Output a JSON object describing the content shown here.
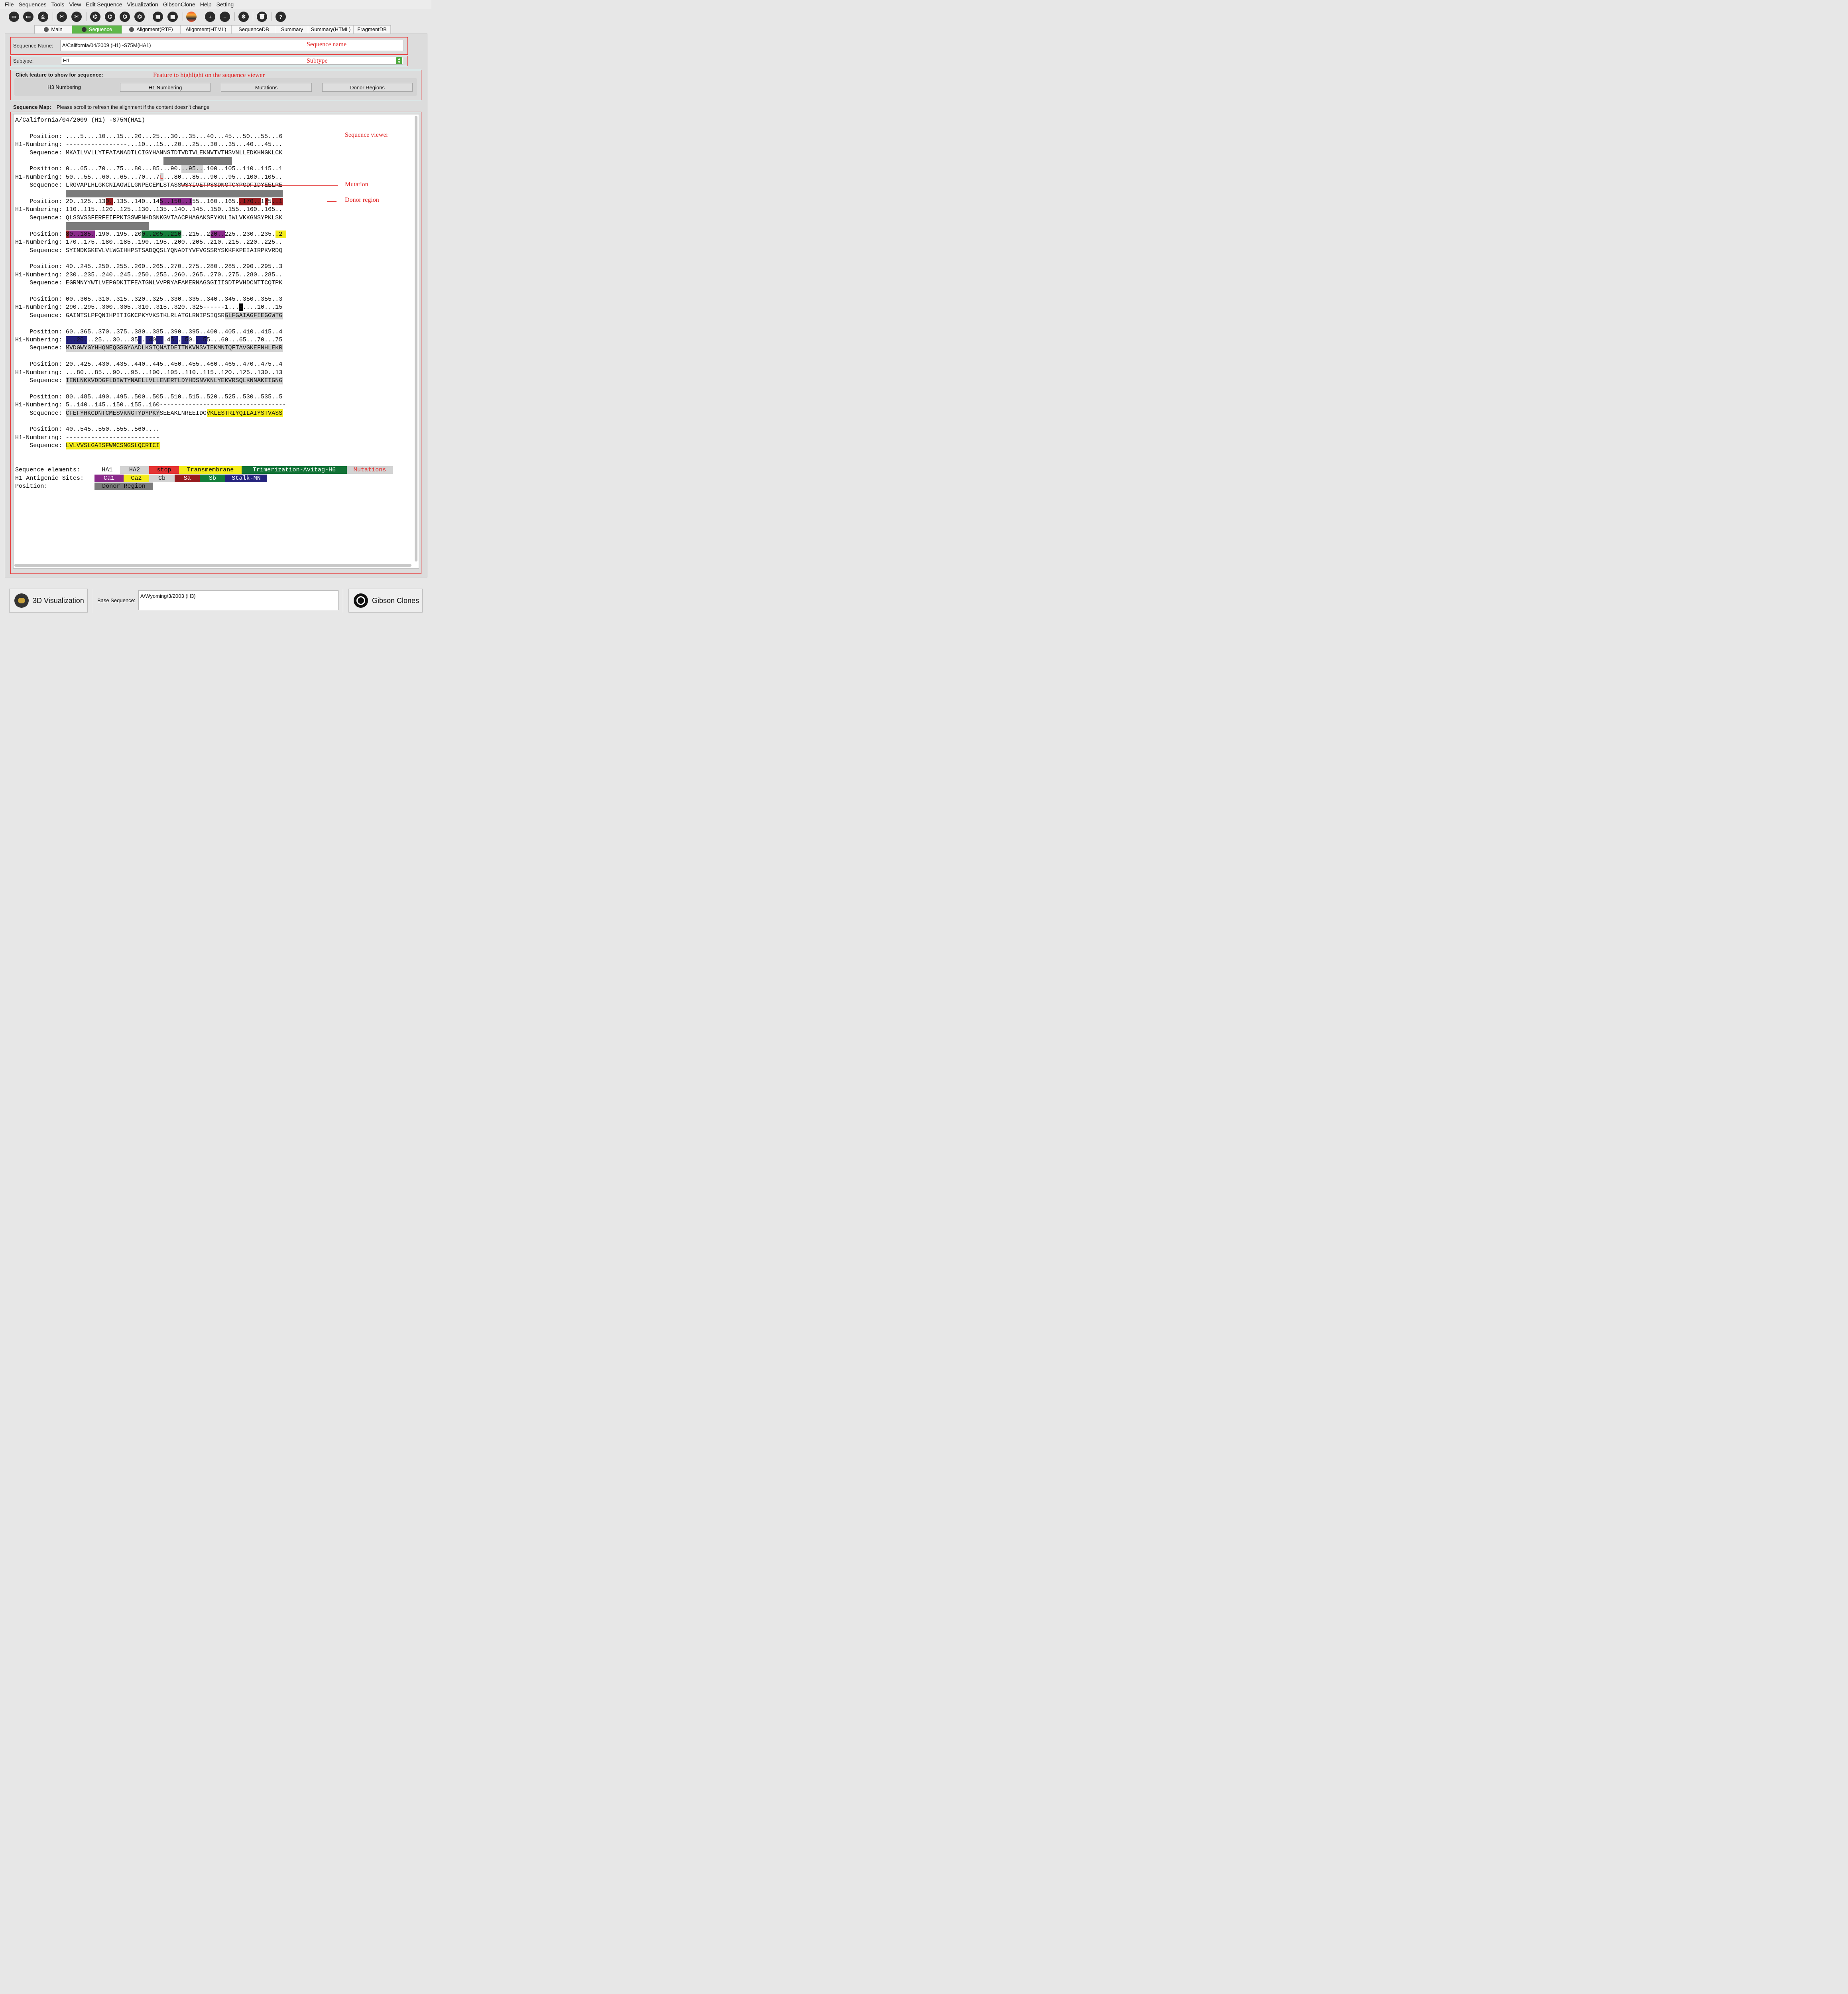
{
  "menu": [
    "File",
    "Sequences",
    "Tools",
    "View",
    "Edit Sequence",
    "Visualization",
    "GibsonClone",
    "Help",
    "Setting"
  ],
  "toolbar_icons": [
    "new-file-icon",
    "open-folder-icon",
    "print-icon",
    "cut-left-icon",
    "cut-right-icon",
    "molecule-1-icon",
    "molecule-2-icon",
    "molecule-3-icon",
    "molecule-4-icon",
    "structure-1-icon",
    "structure-2-icon",
    "color-bars-icon",
    "zoom-in-icon",
    "zoom-out-icon",
    "settings-icon",
    "trash-icon",
    "help-icon"
  ],
  "tabs": [
    {
      "label": "Main",
      "icon": true,
      "active": false
    },
    {
      "label": "Sequence",
      "icon": true,
      "active": true
    },
    {
      "label": "Alignment(RTF)",
      "icon": true,
      "active": false
    },
    {
      "label": "Alignment(HTML)",
      "icon": false,
      "active": false
    },
    {
      "label": "SequenceDB",
      "icon": false,
      "active": false
    },
    {
      "label": "Summary",
      "icon": false,
      "active": false
    },
    {
      "label": "Summary(HTML)",
      "icon": false,
      "active": false
    },
    {
      "label": "FragmentDB",
      "icon": false,
      "active": false
    }
  ],
  "sequence_name": {
    "label": "Sequence Name:",
    "value": "A/California/04/2009 (H1) -S75M(HA1)"
  },
  "subtype": {
    "label": "Subtype:",
    "value": "H1"
  },
  "feature": {
    "label": "Click feature to show for sequence:",
    "buttons": [
      "H3 Numbering",
      "H1 Numbering",
      "Mutations",
      "Donor Regions"
    ]
  },
  "sequence_map": {
    "label": "Sequence Map:",
    "note": "Please scroll to refresh the alignment if the content doesn't change"
  },
  "viewer": {
    "title": "A/California/04/2009 (H1) -S75M(HA1)",
    "blocks": [
      {
        "position": "....5....10...15...20...25...30...35...40...45...50...55...6",
        "numbering": "-----------------...10...15...20...25...30...35...40...45...",
        "sequence": "MKAILVVLLYTFATANADTLCIGYHANNSTDTVDTVLEKNVTVTHSVNLLEDKHNGKLCK"
      },
      {
        "position": "0...65...70...75...80...85...90...95...100..105..110..115..1",
        "numbering": "50...55...60...65...70...75...80...85...90...95...100..105..",
        "sequence": "LRGVAPLHLGKCNIAGWILGNPECEMLSTASSWSYIVETPSSDNGTCYPGDFIDYEELRE"
      },
      {
        "position": "20..125..130..135..140..145..150..155..160..165..170..175..1",
        "numbering": "110..115..120..125..130..135..140..145..150..155..160..165..",
        "sequence": "QLSSVSSFERFEIFPKTSSWPNHDSNKGVTAACPHAGAKSFYKNLIWLVKKGNSYPKLSK"
      },
      {
        "position": "80..185..190..195..200..205..210..215..220..225..230..235..2",
        "numbering": "170..175..180..185..190..195..200..205..210..215..220..225..",
        "sequence": "SYINDKGKEVLVLWGIHHPSTSADQQSLYQNADTYVFVGSSRYSKKFKPEIAIRPKVRDQ"
      },
      {
        "position": "40..245..250..255..260..265..270..275..280..285..290..295..3",
        "numbering": "230..235..240..245..250..255..260..265..270..275..280..285..",
        "sequence": "EGRMNYYWTLVEPGDKITFEATGNLVVPRYAFAMERNAGSGIIISDTPVHDCNTTCQTPK"
      },
      {
        "position": "00..305..310..315..320..325..330..335..340..345..350..355..3",
        "numbering": "290..295..300..305..310..315..320..325------1...5....10...15",
        "sequence": "GAINTSLPFQNIHPITIGKCPKYVKSTKLRLATGLRNIPSIQSRGLFGAIAGFIEGGWTG"
      },
      {
        "position": "60..365..370..375..380..385..390..395..400..405..410..415..4",
        "numbering": "...20...25...30...35...40...45...50...55...60...65...70...75",
        "sequence": "MVDGWYGYHHQNEQGSGYAADLKSTQNAIDEITNKVNSVIEKMNTQFTAVGKEFNHLEKR"
      },
      {
        "position": "20..425..430..435..440..445..450..455..460..465..470..475..4",
        "numbering": "...80...85...90...95...100..105..110..115..120..125..130..13",
        "sequence": "IENLNKKVDDGFLDIWTYNAELLVLLENERTLDYHDSNVKNLYEKVRSQLKNNAKEIGNG"
      },
      {
        "position": "80..485..490..495..500..505..510..515..520..525..530..535..5",
        "numbering": "5..140..145..150..155..160-----------------------------------",
        "sequence": "CFEFYHKCDNTCMESVKNGTYDYPKYSEEAKLNREEIDGVKLESTRIYQILAIYSTVASS"
      },
      {
        "position": "40..545..550..555..560....",
        "numbering": "--------------------------",
        "sequence": "LVLVVSLGAISFWMCSNGSLQCRICI"
      }
    ],
    "row_labels": {
      "position": "    Position: ",
      "numbering": "H1-Numbering: ",
      "sequence": "    Sequence: "
    }
  },
  "legend": {
    "sequence_elements_label": "Sequence elements:",
    "antigenic_label": "H1 Antigenic Sites:",
    "position_label": "Position:",
    "elements": [
      {
        "label": "HA1",
        "bg": "#ffffff",
        "fg": "#111111"
      },
      {
        "label": "HA2",
        "bg": "#d3d3d3",
        "fg": "#111111"
      },
      {
        "label": "stop",
        "bg": "#e53333",
        "fg": "#111111"
      },
      {
        "label": "Transmembrane",
        "bg": "#f4ec1b",
        "fg": "#111111"
      },
      {
        "label": "Trimerization-Avitag-H6",
        "bg": "#127236",
        "fg": "#ffffff"
      },
      {
        "label": "Mutations",
        "bg": "#d3d3d3",
        "fg": "#e53333"
      }
    ],
    "antigenic": [
      {
        "label": "Ca1",
        "bg": "#8a2a8a",
        "fg": "#ffffff"
      },
      {
        "label": "Ca2",
        "bg": "#f4ec1b",
        "fg": "#111111"
      },
      {
        "label": "Cb",
        "bg": "#d3d3d3",
        "fg": "#111111"
      },
      {
        "label": "Sa",
        "bg": "#971b1e",
        "fg": "#ffffff"
      },
      {
        "label": "Sb",
        "bg": "#137e3a",
        "fg": "#ffffff"
      },
      {
        "label": "Stalk-MN",
        "bg": "#24237d",
        "fg": "#ffffff"
      }
    ],
    "position": [
      {
        "label": "Donor Region",
        "bg": "#7b7b7b",
        "fg": "#111111"
      }
    ]
  },
  "annotations": {
    "sequence_name": "Sequence name",
    "subtype": "Subtype",
    "feature": "Feature to highlight on the sequence viewer",
    "viewer": "Sequence viewer",
    "mutation": "Mutation",
    "donor": "Donor region"
  },
  "bottom": {
    "visualization_button": "3D Visualization",
    "base_sequence_label": "Base Sequence:",
    "base_sequence_value": "A/Wyoming/3/2003 (H3)",
    "gibson_button": "Gibson Clones"
  },
  "colors": {
    "donor": "#7b7b7b",
    "ha2": "#d3d3d3",
    "ca1": "#8a2a8a",
    "ca2": "#f4ec1b",
    "sa": "#971b1e",
    "sb": "#137e3a",
    "stalk": "#24237d",
    "mutation_text": "#e53333",
    "tab_active": "#5fb84a",
    "annot_red": "#e02020"
  }
}
